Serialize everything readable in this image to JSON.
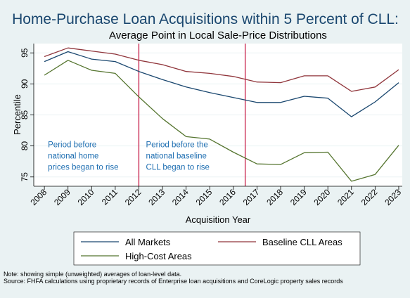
{
  "title": "Home-Purchase Loan Acquisitions within 5 Percent of CLL:",
  "subtitle": "Average Point in Local Sale-Price Distributions",
  "chart_data": {
    "type": "line",
    "title": "Home-Purchase Loan Acquisitions within 5 Percent of CLL:",
    "subtitle": "Average Point in Local Sale-Price Distributions",
    "xlabel": "Acquisition Year",
    "ylabel": "Percentile",
    "x": [
      2008,
      2009,
      2010,
      2011,
      2012,
      2013,
      2014,
      2015,
      2016,
      2017,
      2018,
      2019,
      2020,
      2021,
      2022,
      2023
    ],
    "ylim": [
      73.5,
      96.5
    ],
    "yticks": [
      75,
      80,
      85,
      90,
      95
    ],
    "grid": true,
    "legend_position": "bottom",
    "series": [
      {
        "name": "All Markets",
        "color": "#1a476f",
        "values": [
          93.6,
          95.2,
          94.0,
          93.6,
          92.0,
          90.7,
          89.5,
          88.6,
          87.8,
          87.0,
          87.0,
          88.0,
          87.7,
          84.7,
          87.1,
          90.2
        ]
      },
      {
        "name": "Baseline CLL Areas",
        "color": "#90353b",
        "values": [
          94.4,
          95.8,
          95.3,
          94.8,
          93.8,
          93.1,
          92.0,
          91.7,
          91.2,
          90.3,
          90.2,
          91.3,
          91.3,
          88.8,
          89.5,
          92.3
        ]
      },
      {
        "name": "High-Cost Areas",
        "color": "#55752f",
        "values": [
          91.4,
          93.8,
          92.2,
          91.7,
          87.9,
          84.4,
          81.5,
          81.1,
          79.0,
          77.1,
          77.0,
          78.9,
          79.0,
          74.3,
          75.4,
          80.1
        ]
      }
    ],
    "reference_lines": [
      {
        "x": 2012,
        "color": "#c10534"
      },
      {
        "x": 2016.5,
        "color": "#c10534"
      }
    ],
    "annotations": [
      {
        "x": 2008.15,
        "y": 79.8,
        "lines": [
          "Period before",
          "national home",
          "prices began to rise"
        ]
      },
      {
        "x": 2012.3,
        "y": 79.8,
        "lines": [
          "Period before the",
          "national baseline",
          "CLL began to rise"
        ]
      }
    ]
  },
  "notes": [
    "Note: showing simple (unweighted) averages of loan-level data.",
    "Source: FHFA calculations using proprietary records of Enterprise loan acquisitions and CoreLogic property sales records"
  ]
}
